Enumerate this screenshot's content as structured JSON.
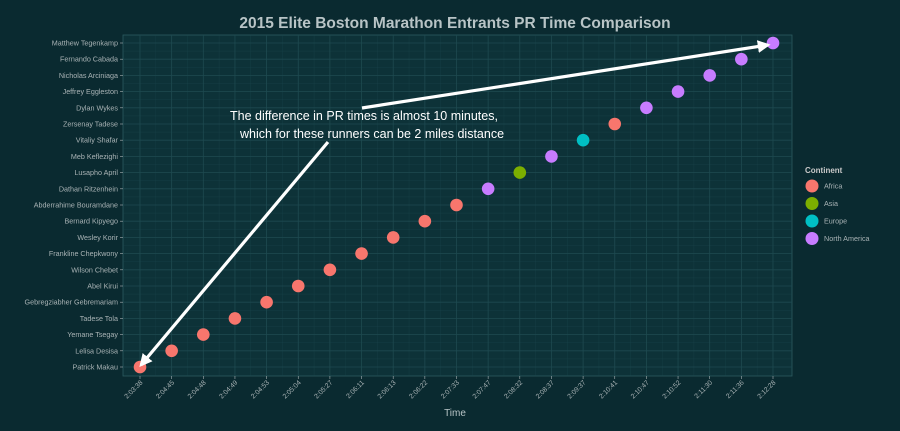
{
  "colors": {
    "background": "#0a2a30",
    "panel": "#0d3238",
    "grid": "#1e4a50",
    "text_light": "#c9c9c9",
    "text_dim": "#a9b3b5",
    "arrow": "#ffffff"
  },
  "chart_data": {
    "type": "scatter",
    "title": "2015 Elite Boston Marathon Entrants PR Time Comparison",
    "xlabel": "Time",
    "ylabel": "",
    "x_tick_labels": [
      "2:03:38",
      "2:04:45",
      "2:04:48",
      "2:04:49",
      "2:04:53",
      "2:05:04",
      "2:05:27",
      "2:06:11",
      "2:06:13",
      "2:06:22",
      "2:07:33",
      "2:07:47",
      "2:08:32",
      "2:08:37",
      "2:09:37",
      "2:10:41",
      "2:10:47",
      "2:10:52",
      "2:11:30",
      "2:11:36",
      "2:12:28"
    ],
    "legend": {
      "title": "Continent",
      "position": "right",
      "entries": [
        {
          "name": "Africa",
          "color": "#f8766d"
        },
        {
          "name": "Asia",
          "color": "#7cae00"
        },
        {
          "name": "Europe",
          "color": "#00bfc4"
        },
        {
          "name": "North America",
          "color": "#c77cff"
        }
      ]
    },
    "points": [
      {
        "runner": "Patrick Makau",
        "time": "2:03:38",
        "continent": "Africa"
      },
      {
        "runner": "Lelisa Desisa",
        "time": "2:04:45",
        "continent": "Africa"
      },
      {
        "runner": "Yemane Tsegay",
        "time": "2:04:48",
        "continent": "Africa"
      },
      {
        "runner": "Tadese Tola",
        "time": "2:04:49",
        "continent": "Africa"
      },
      {
        "runner": "Gebregziabher Gebremariam",
        "time": "2:04:53",
        "continent": "Africa"
      },
      {
        "runner": "Abel Kirui",
        "time": "2:05:04",
        "continent": "Africa"
      },
      {
        "runner": "Wilson Chebet",
        "time": "2:05:27",
        "continent": "Africa"
      },
      {
        "runner": "Frankline Chepkwony",
        "time": "2:06:11",
        "continent": "Africa"
      },
      {
        "runner": "Wesley Korir",
        "time": "2:06:13",
        "continent": "Africa"
      },
      {
        "runner": "Bernard Kipyego",
        "time": "2:06:22",
        "continent": "Africa"
      },
      {
        "runner": "Abderrahime Bouramdane",
        "time": "2:07:33",
        "continent": "Africa"
      },
      {
        "runner": "Dathan Ritzenhein",
        "time": "2:07:47",
        "continent": "North America"
      },
      {
        "runner": "Lusapho April",
        "time": "2:08:32",
        "continent": "Asia"
      },
      {
        "runner": "Meb Keflezighi",
        "time": "2:08:37",
        "continent": "North America"
      },
      {
        "runner": "Vitaliy Shafar",
        "time": "2:09:37",
        "continent": "Europe"
      },
      {
        "runner": "Zersenay Tadese",
        "time": "2:10:41",
        "continent": "Africa"
      },
      {
        "runner": "Dylan Wykes",
        "time": "2:10:47",
        "continent": "North America"
      },
      {
        "runner": "Jeffrey Eggleston",
        "time": "2:10:52",
        "continent": "North America"
      },
      {
        "runner": "Nicholas Arciniaga",
        "time": "2:11:30",
        "continent": "North America"
      },
      {
        "runner": "Fernando Cabada",
        "time": "2:11:36",
        "continent": "North America"
      },
      {
        "runner": "Matthew Tegenkamp",
        "time": "2:12:28",
        "continent": "North America"
      }
    ],
    "annotation": {
      "line1": "The difference in PR times is almost 10 minutes,",
      "line2": "which for these runners can be 2 miles distance"
    }
  }
}
